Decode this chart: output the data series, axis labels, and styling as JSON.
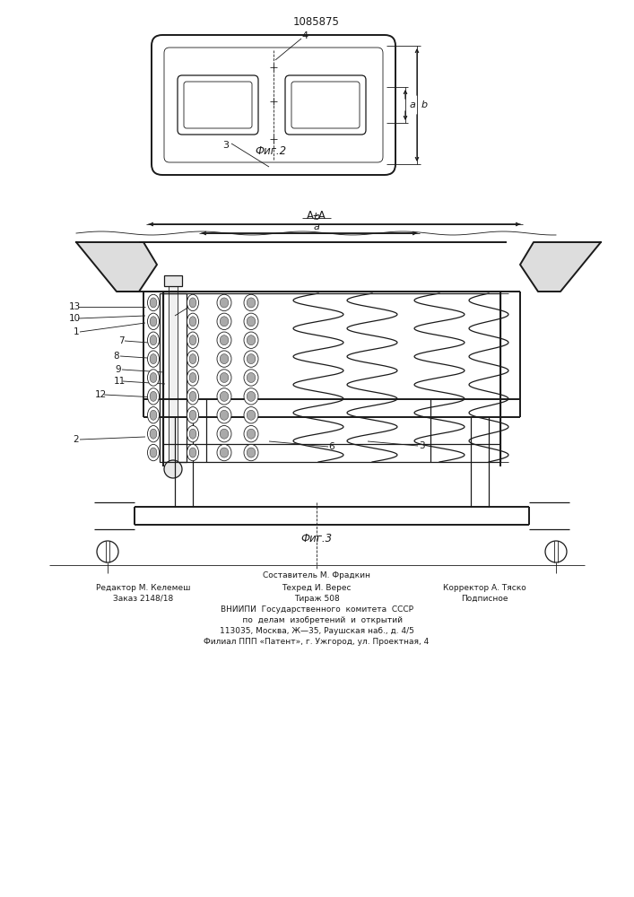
{
  "patent_number": "1085875",
  "background": "#ffffff",
  "line_color": "#1a1a1a",
  "lw_thin": 0.6,
  "lw_med": 0.9,
  "lw_thick": 1.4,
  "footer_col1_line1": "Редактор М. Келемеш",
  "footer_col1_line2": "Заказ 2148/18",
  "footer_col2_line0": "Составитель М. Фрадкин",
  "footer_col2_line1": "Техред И. Верес",
  "footer_col2_line2": "Тираж 508",
  "footer_col3_line1": "Корректор А. Тяско",
  "footer_col3_line2": "Подписное",
  "footer_vniipи": "ВНИИПИ  Государственного  комитета  СССР",
  "footer_po": "     по  делам  изобретений  и  открытий",
  "footer_addr1": "113035, Москва, Ж—35, Раушская наб., д. 4/5",
  "footer_addr2": "Филиал ППП «Патент», г. Ужгород, ул. Проектная, 4"
}
